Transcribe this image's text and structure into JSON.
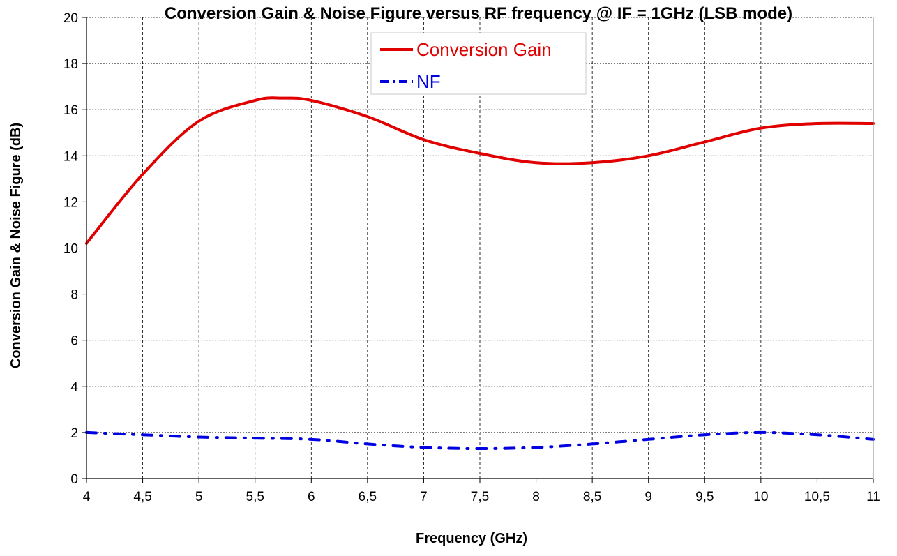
{
  "chart_data": {
    "type": "line",
    "title": "Conversion Gain & Noise Figure versus RF frequency @ IF = 1GHz (LSB mode)",
    "xlabel": "Frequency (GHz)",
    "ylabel": "Conversion Gain & Noise Figure  (dB)",
    "xlim": [
      4,
      11
    ],
    "ylim": [
      0,
      20
    ],
    "xticks": [
      4,
      4.5,
      5,
      5.5,
      6,
      6.5,
      7,
      7.5,
      8,
      8.5,
      9,
      9.5,
      10,
      10.5,
      11
    ],
    "xtick_labels": [
      "4",
      "4,5",
      "5",
      "5,5",
      "6",
      "6,5",
      "7",
      "7,5",
      "8",
      "8,5",
      "9",
      "9,5",
      "10",
      "10,5",
      "11"
    ],
    "yticks": [
      0,
      2,
      4,
      6,
      8,
      10,
      12,
      14,
      16,
      18,
      20
    ],
    "grid": true,
    "legend_placement": "top-center",
    "series": [
      {
        "name": "Conversion Gain",
        "color": "#e00000",
        "style": "solid",
        "x": [
          4,
          4.5,
          5,
          5.5,
          5.75,
          6,
          6.5,
          7,
          7.5,
          8,
          8.5,
          9,
          9.5,
          10,
          10.5,
          11
        ],
        "y": [
          10.2,
          13.2,
          15.5,
          16.4,
          16.5,
          16.4,
          15.7,
          14.7,
          14.1,
          13.7,
          13.7,
          14.0,
          14.6,
          15.2,
          15.4,
          15.4
        ]
      },
      {
        "name": "NF",
        "color": "#0000e0",
        "style": "dash-dot",
        "x": [
          4,
          4.5,
          5,
          5.5,
          6,
          6.5,
          7,
          7.5,
          8,
          8.5,
          9,
          9.5,
          10,
          10.5,
          11
        ],
        "y": [
          2.0,
          1.9,
          1.8,
          1.75,
          1.7,
          1.5,
          1.35,
          1.3,
          1.35,
          1.5,
          1.7,
          1.9,
          2.0,
          1.9,
          1.7
        ]
      }
    ]
  }
}
